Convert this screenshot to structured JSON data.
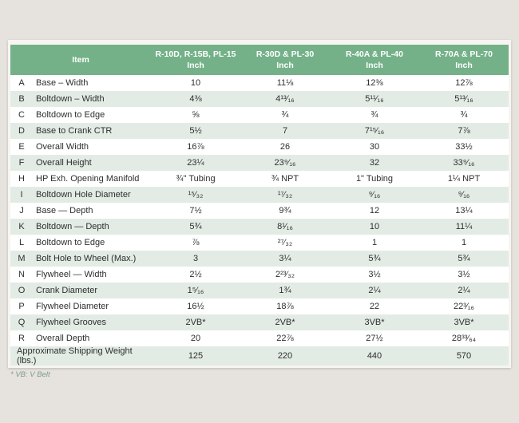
{
  "colors": {
    "page_background": "#e6e2dd",
    "header_green": "#74b189",
    "row_stripe_green": "#e2ece5",
    "footnote_green": "#7d9c8d",
    "header_text": "#ffffff",
    "body_text": "#2e2e2e"
  },
  "table": {
    "header": {
      "item_label": "Item",
      "columns": [
        {
          "models": "R-10D, R-15B, PL-15",
          "unit": "Inch"
        },
        {
          "models": "R-30D & PL-30",
          "unit": "Inch"
        },
        {
          "models": "R-40A & PL-40",
          "unit": "Inch"
        },
        {
          "models": "R-70A & PL-70",
          "unit": "Inch"
        }
      ]
    },
    "rows": [
      {
        "letter": "A",
        "item": "Base – Width",
        "values": [
          "10",
          "11⅛",
          "12⅜",
          "12⅞"
        ]
      },
      {
        "letter": "B",
        "item": "Boltdown – Width",
        "values": [
          "4⅜",
          "4¹³⁄₁₆",
          "5¹¹⁄₁₆",
          "5¹³⁄₁₆"
        ]
      },
      {
        "letter": "C",
        "item": "Boltdown to Edge",
        "values": [
          "⅝",
          "¾",
          "¾",
          "¾"
        ]
      },
      {
        "letter": "D",
        "item": "Base to Crank CTR",
        "values": [
          "5½",
          "7",
          "7¹⁵⁄₁₆",
          "7⅞"
        ]
      },
      {
        "letter": "E",
        "item": "Overall Width",
        "values": [
          "16⅞",
          "26",
          "30",
          "33½"
        ]
      },
      {
        "letter": "F",
        "item": "Overall Height",
        "values": [
          "23¼",
          "23⁹⁄₁₆",
          "32",
          "33⁹⁄₁₆"
        ]
      },
      {
        "letter": "H",
        "item": "HP Exh. Opening Manifold",
        "values": [
          "¾\" Tubing",
          "¾ NPT",
          "1\" Tubing",
          "1¼ NPT"
        ]
      },
      {
        "letter": "I",
        "item": "Boltdown Hole Diameter",
        "values": [
          "¹⁵⁄₃₂",
          "¹⁷⁄₃₂",
          "⁹⁄₁₆",
          "⁹⁄₁₆"
        ]
      },
      {
        "letter": "J",
        "item": "Base — Depth",
        "values": [
          "7½",
          "9¾",
          "12",
          "13¼"
        ]
      },
      {
        "letter": "K",
        "item": "Boltdown — Depth",
        "values": [
          "5¾",
          "8¹⁄₁₆",
          "10",
          "11¼"
        ]
      },
      {
        "letter": "L",
        "item": "Boltdown to Edge",
        "values": [
          "⅞",
          "²⁷⁄₃₂",
          "1",
          "1"
        ]
      },
      {
        "letter": "M",
        "item": "Bolt Hole to Wheel (Max.)",
        "values": [
          "3",
          "3¼",
          "5¾",
          "5¾"
        ]
      },
      {
        "letter": "N",
        "item": "Flywheel — Width",
        "values": [
          "2½",
          "2²³⁄₃₂",
          "3½",
          "3½"
        ]
      },
      {
        "letter": "O",
        "item": "Crank Diameter",
        "values": [
          "1⁵⁄₁₆",
          "1¾",
          "2¼",
          "2¼"
        ]
      },
      {
        "letter": "P",
        "item": "Flywheel Diameter",
        "values": [
          "16½",
          "18⅞",
          "22",
          "22³⁄₁₆"
        ]
      },
      {
        "letter": "Q",
        "item": "Flywheel Grooves",
        "values": [
          "2VB*",
          "2VB*",
          "3VB*",
          "3VB*"
        ]
      },
      {
        "letter": "R",
        "item": "Overall Depth",
        "values": [
          "20",
          "22⅞",
          "27½",
          "28³³⁄₆₄"
        ]
      }
    ],
    "summary_row": {
      "label": "Approximate Shipping Weight (lbs.)",
      "values": [
        "125",
        "220",
        "440",
        "570"
      ]
    },
    "footnote": "* VB: V Belt"
  }
}
